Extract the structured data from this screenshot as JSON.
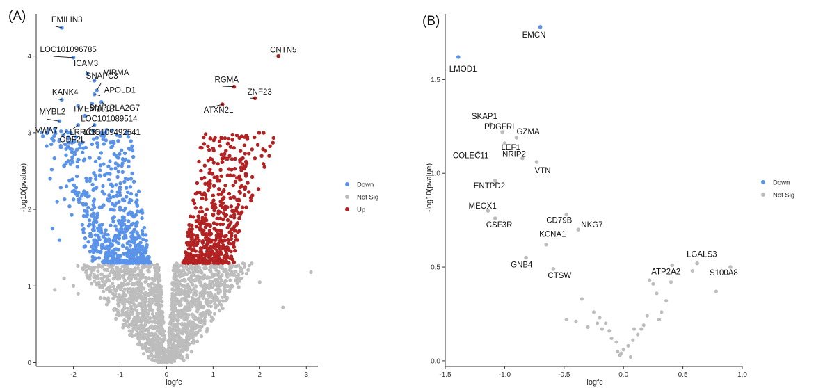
{
  "colors": {
    "down": "#5b93e8",
    "notsig": "#bdbdbd",
    "up": "#b22222"
  },
  "chart_data": [
    {
      "panel": "(A)",
      "type": "scatter",
      "xlabel": "logfc",
      "ylabel": "-log10(pvalue)",
      "xlim": [
        -2.8,
        3.25
      ],
      "ylim": [
        -0.05,
        4.55
      ],
      "xticks": [
        -2,
        -1,
        0,
        1,
        2,
        3
      ],
      "yticks": [
        0,
        1,
        2,
        3,
        4
      ],
      "xtick_labels": [
        "-2",
        "-1",
        "0",
        "1",
        "2",
        "3"
      ],
      "ytick_labels": [
        "0",
        "1",
        "2",
        "3",
        "4"
      ],
      "legend": {
        "placement": "right",
        "entries": [
          {
            "key": "down",
            "label": "Down"
          },
          {
            "key": "notsig",
            "label": "Not Sig"
          },
          {
            "key": "up",
            "label": "Up"
          }
        ]
      },
      "cloud": {
        "description": "dense cloud of genes",
        "threshold_y": 1.3
      },
      "labeled_genes": [
        {
          "gene": "EMILIN3",
          "x": -2.25,
          "y": 4.37,
          "group": "down"
        },
        {
          "gene": "LOC101096785",
          "x": -2.0,
          "y": 3.98,
          "group": "down"
        },
        {
          "gene": "ICAM3",
          "x": -1.7,
          "y": 3.77,
          "group": "down"
        },
        {
          "gene": "VIRMA",
          "x": -1.5,
          "y": 3.55,
          "group": "down"
        },
        {
          "gene": "SNAPC3",
          "x": -1.55,
          "y": 3.68,
          "group": "down"
        },
        {
          "gene": "APOLD1",
          "x": -1.55,
          "y": 3.5,
          "group": "down"
        },
        {
          "gene": "KANK4",
          "x": -2.25,
          "y": 3.43,
          "group": "down"
        },
        {
          "gene": "TMEM161B",
          "x": -1.9,
          "y": 3.35,
          "group": "down"
        },
        {
          "gene": "BMP1",
          "x": -1.6,
          "y": 3.38,
          "group": "down"
        },
        {
          "gene": "PLA2G7",
          "x": -1.4,
          "y": 3.4,
          "group": "down"
        },
        {
          "gene": "MYBL2",
          "x": -2.3,
          "y": 3.15,
          "group": "down"
        },
        {
          "gene": "LOC101089514",
          "x": -1.75,
          "y": 3.22,
          "group": "down"
        },
        {
          "gene": "LRRC36",
          "x": -1.9,
          "y": 3.1,
          "group": "down"
        },
        {
          "gene": "VWA7",
          "x": -2.4,
          "y": 3.05,
          "group": "down"
        },
        {
          "gene": "LOC109492541",
          "x": -1.55,
          "y": 3.1,
          "group": "down"
        },
        {
          "gene": "ODF2L",
          "x": -2.15,
          "y": 3.02,
          "group": "down"
        },
        {
          "gene": "CNTN5",
          "x": 2.4,
          "y": 4.0,
          "group": "up"
        },
        {
          "gene": "RGMA",
          "x": 1.45,
          "y": 3.6,
          "group": "up"
        },
        {
          "gene": "ZNF23",
          "x": 1.9,
          "y": 3.45,
          "group": "up"
        },
        {
          "gene": "ATXN2L",
          "x": 1.2,
          "y": 3.37,
          "group": "up"
        }
      ]
    },
    {
      "panel": "(B)",
      "type": "scatter",
      "xlabel": "logfc",
      "ylabel": "-log10(pvalue)",
      "xlim": [
        -1.5,
        1.0
      ],
      "ylim": [
        -0.03,
        1.85
      ],
      "xticks": [
        -1.5,
        -1.0,
        -0.5,
        0.0,
        0.5,
        1.0
      ],
      "yticks": [
        0.0,
        0.5,
        1.0,
        1.5
      ],
      "xtick_labels": [
        "-1.5",
        "-1.0",
        "-0.5",
        "0.0",
        "0.5",
        "1.0"
      ],
      "ytick_labels": [
        "0.0",
        "0.5",
        "1.0",
        "1.5"
      ],
      "legend": {
        "placement": "right",
        "entries": [
          {
            "key": "down",
            "label": "Down"
          },
          {
            "key": "notsig",
            "label": "Not Sig"
          }
        ]
      },
      "labeled_genes": [
        {
          "gene": "EMCN",
          "x": -0.7,
          "y": 1.78,
          "group": "down"
        },
        {
          "gene": "LMOD1",
          "x": -1.39,
          "y": 1.62,
          "group": "down"
        },
        {
          "gene": "SKAP1",
          "x": -1.12,
          "y": 1.26,
          "group": "notsig"
        },
        {
          "gene": "PDGFRL",
          "x": -1.02,
          "y": 1.22,
          "group": "notsig"
        },
        {
          "gene": "GZMA",
          "x": -0.9,
          "y": 1.19,
          "group": "notsig"
        },
        {
          "gene": "LEF1",
          "x": -1.0,
          "y": 1.16,
          "group": "notsig"
        },
        {
          "gene": "COLEC11",
          "x": -1.22,
          "y": 1.11,
          "group": "notsig"
        },
        {
          "gene": "NRIP2",
          "x": -0.85,
          "y": 1.08,
          "group": "notsig"
        },
        {
          "gene": "VTN",
          "x": -0.73,
          "y": 1.06,
          "group": "notsig"
        },
        {
          "gene": "ENTPD2",
          "x": -1.08,
          "y": 0.96,
          "group": "notsig"
        },
        {
          "gene": "MEOX1",
          "x": -1.14,
          "y": 0.8,
          "group": "notsig"
        },
        {
          "gene": "CSF3R",
          "x": -1.08,
          "y": 0.76,
          "group": "notsig"
        },
        {
          "gene": "CD79B",
          "x": -0.48,
          "y": 0.78,
          "group": "notsig"
        },
        {
          "gene": "NKG7",
          "x": -0.38,
          "y": 0.7,
          "group": "notsig"
        },
        {
          "gene": "KCNA1",
          "x": -0.65,
          "y": 0.62,
          "group": "notsig"
        },
        {
          "gene": "GNB4",
          "x": -0.82,
          "y": 0.55,
          "group": "notsig"
        },
        {
          "gene": "CTSW",
          "x": -0.59,
          "y": 0.49,
          "group": "notsig"
        },
        {
          "gene": "LGALS3",
          "x": 0.62,
          "y": 0.52,
          "group": "notsig"
        },
        {
          "gene": "ATP2A2",
          "x": 0.41,
          "y": 0.51,
          "group": "notsig"
        },
        {
          "gene": "S100A8",
          "x": 0.9,
          "y": 0.5,
          "group": "notsig"
        }
      ],
      "other_points": [
        {
          "x": 0.78,
          "y": 0.37
        },
        {
          "x": 0.58,
          "y": 0.48
        },
        {
          "x": 0.4,
          "y": 0.42
        },
        {
          "x": 0.36,
          "y": 0.32
        },
        {
          "x": 0.32,
          "y": 0.26
        },
        {
          "x": 0.3,
          "y": 0.22
        },
        {
          "x": 0.28,
          "y": 0.36
        },
        {
          "x": 0.25,
          "y": 0.41
        },
        {
          "x": 0.22,
          "y": 0.43
        },
        {
          "x": 0.2,
          "y": 0.24
        },
        {
          "x": 0.17,
          "y": 0.19
        },
        {
          "x": 0.15,
          "y": 0.17
        },
        {
          "x": 0.12,
          "y": 0.14
        },
        {
          "x": 0.08,
          "y": 0.11
        },
        {
          "x": 0.04,
          "y": 0.08
        },
        {
          "x": 0.0,
          "y": 0.06
        },
        {
          "x": -0.02,
          "y": 0.04
        },
        {
          "x": -0.06,
          "y": 0.1
        },
        {
          "x": -0.1,
          "y": 0.12
        },
        {
          "x": -0.12,
          "y": 0.16
        },
        {
          "x": -0.15,
          "y": 0.2
        },
        {
          "x": -0.18,
          "y": 0.17
        },
        {
          "x": -0.2,
          "y": 0.23
        },
        {
          "x": -0.22,
          "y": 0.2
        },
        {
          "x": -0.25,
          "y": 0.26
        },
        {
          "x": -0.3,
          "y": 0.18
        },
        {
          "x": -0.35,
          "y": 0.33
        },
        {
          "x": -0.4,
          "y": 0.21
        },
        {
          "x": -0.48,
          "y": 0.22
        },
        {
          "x": 0.06,
          "y": 0.02
        },
        {
          "x": -0.05,
          "y": 0.05
        },
        {
          "x": 0.09,
          "y": 0.17
        },
        {
          "x": -0.03,
          "y": 0.03
        }
      ]
    }
  ]
}
